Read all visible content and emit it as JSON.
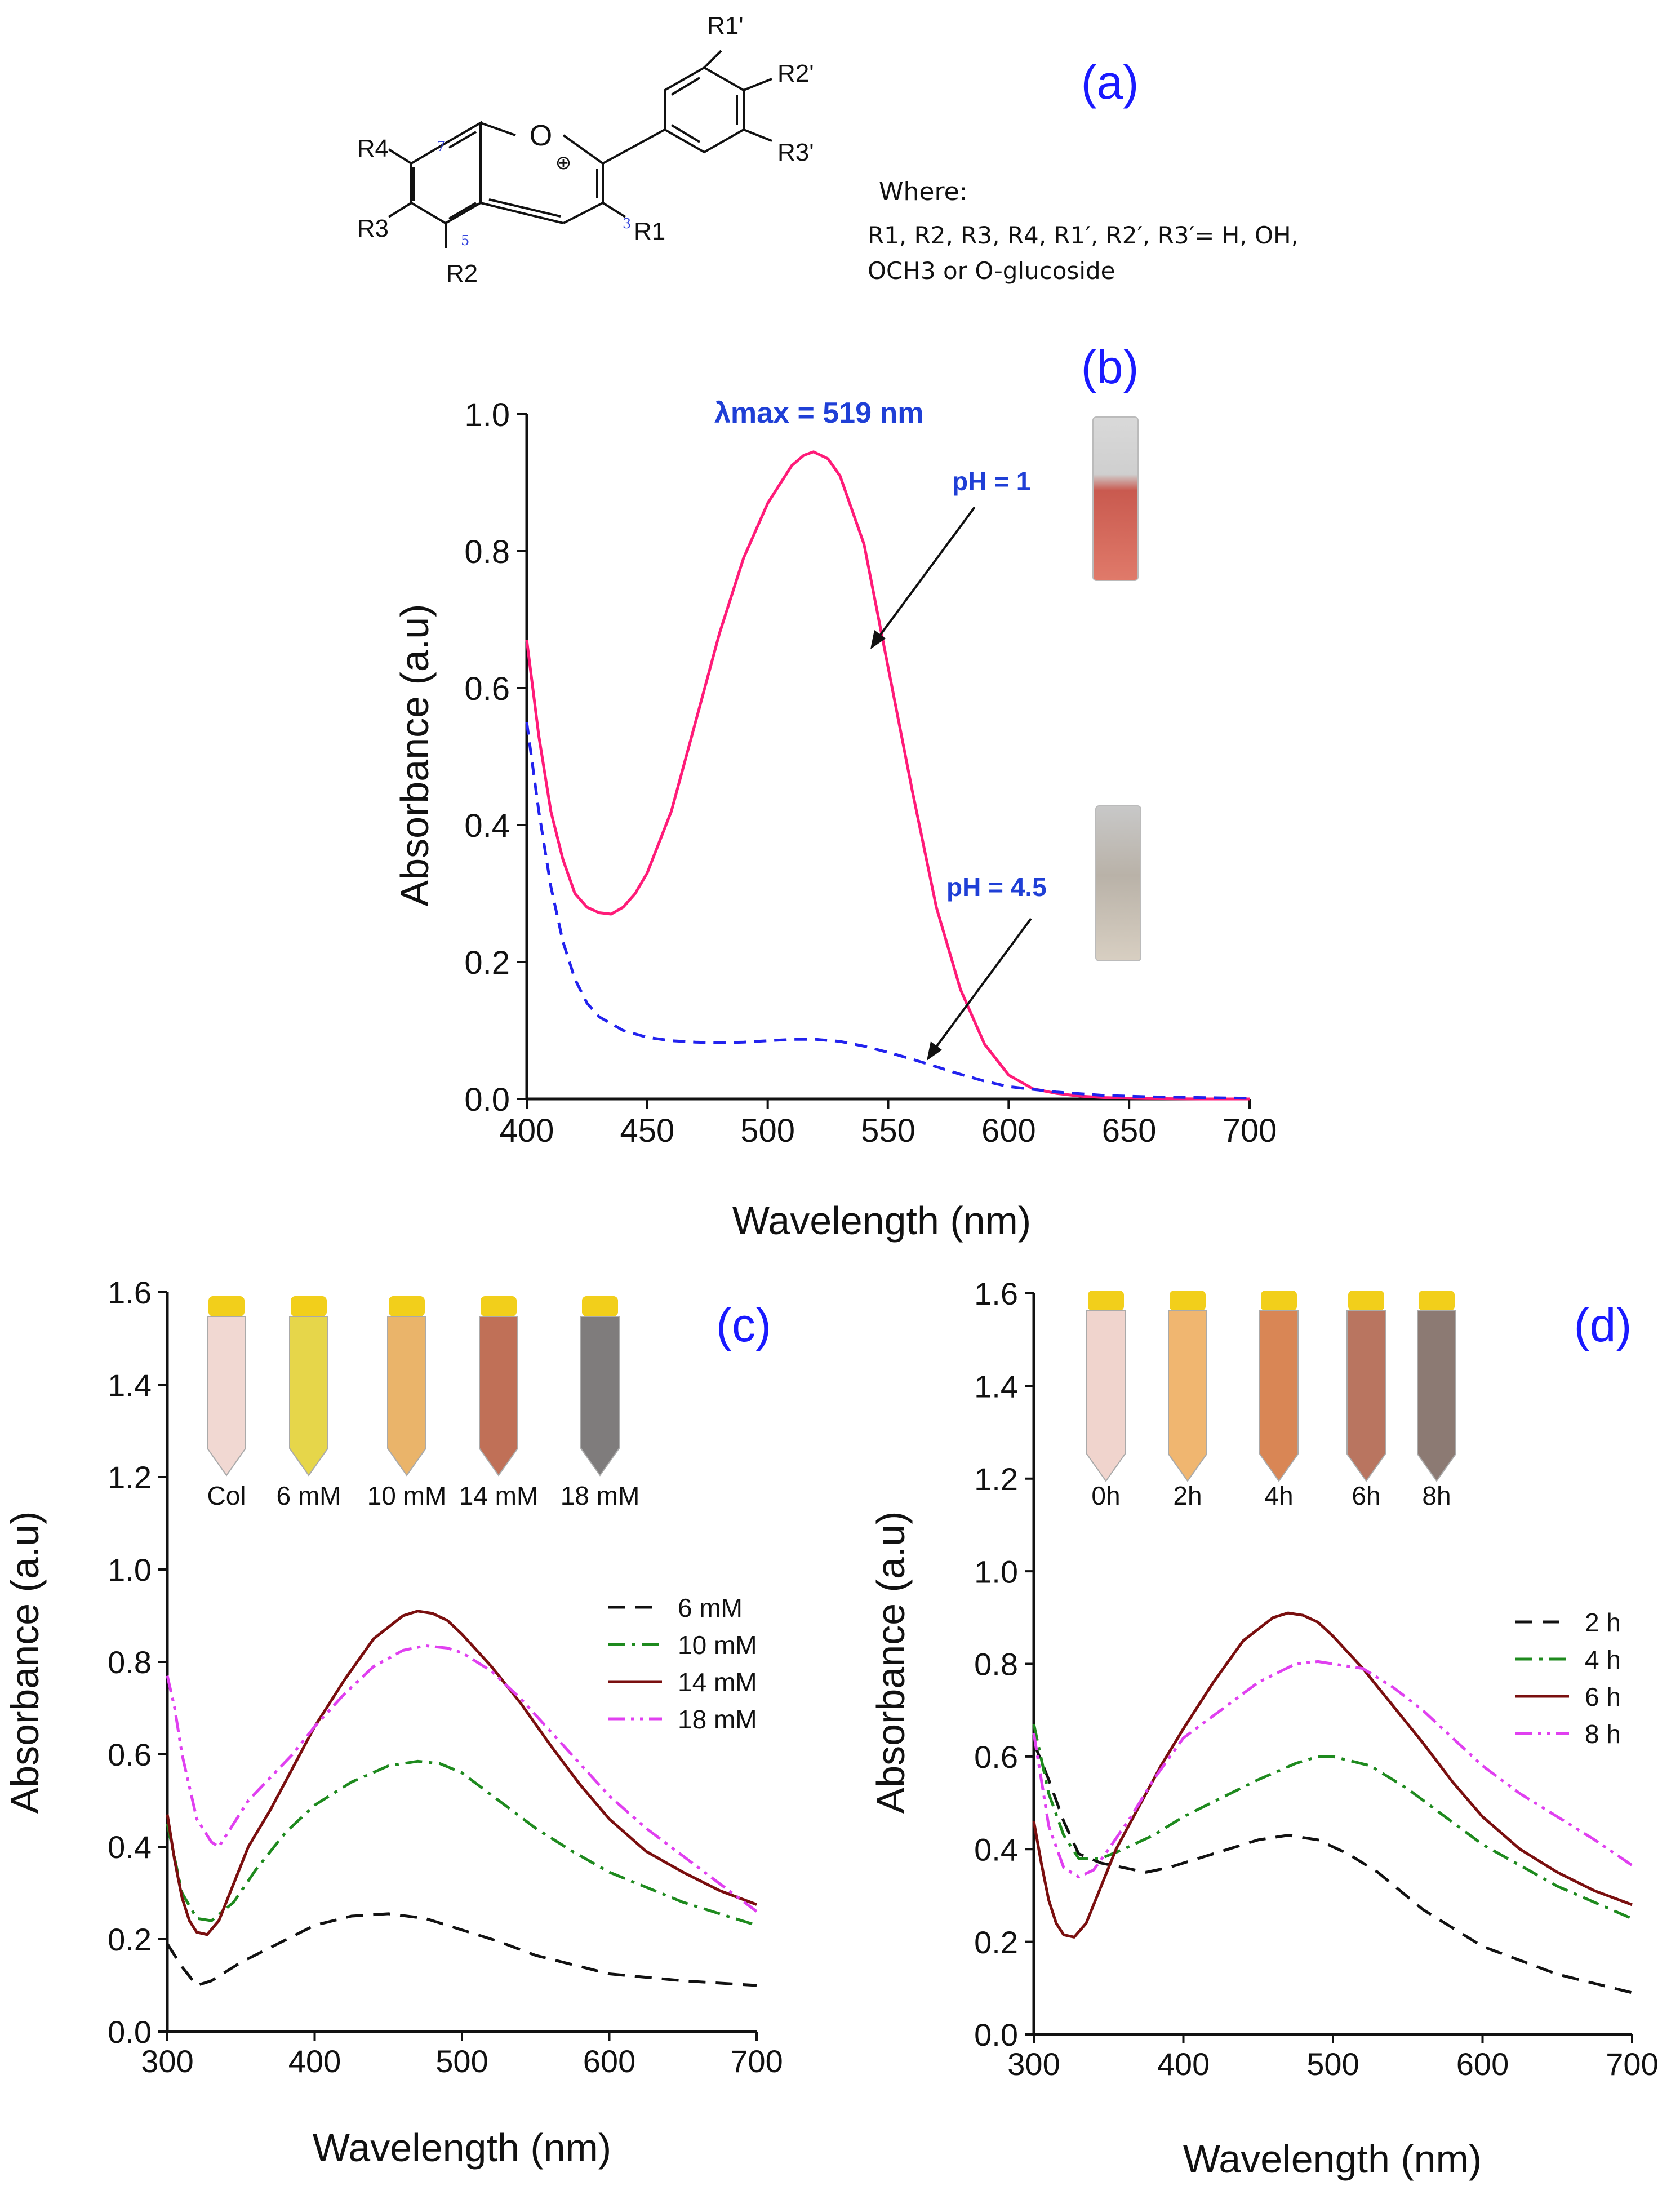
{
  "colors": {
    "blue_label": "#1a1aff",
    "blue_text": "#1f3fd6",
    "pink": "#ff1b78",
    "dash_blue": "#2222ee",
    "black": "#111111",
    "green": "#1e8a1e",
    "maroon": "#7a0f0f",
    "magenta": "#e040f0"
  },
  "structure": {
    "label": "(a)",
    "subs": {
      "r1p": "R1'",
      "r2p": "R2'",
      "r3p": "R3'",
      "r4": "R4",
      "r3": "R3",
      "r2": "R2",
      "r1": "R1",
      "o": "O",
      "plus": "⊕",
      "n7": "7",
      "n5": "5",
      "n3": "3"
    },
    "where": "Where:",
    "where_line1": "R1, R2, R3, R4, R1′, R2′, R3′= H, OH,",
    "where_line2": "OCH3 or O-glucoside"
  },
  "chart_data": [
    {
      "panel": "(b)",
      "type": "line",
      "xlabel": "Wavelength (nm)",
      "ylabel": "Absorbance (a.u)",
      "xlim": [
        400,
        700
      ],
      "ylim": [
        0.0,
        1.0
      ],
      "xticks": [
        "400",
        "450",
        "500",
        "550",
        "600",
        "650",
        "700"
      ],
      "yticks": [
        "0.0",
        "0.2",
        "0.4",
        "0.6",
        "0.8",
        "1.0"
      ],
      "annotation_lmax": "λmax = 519 nm",
      "annotation_ph1": "pH = 1",
      "annotation_ph45": "pH = 4.5",
      "series": [
        {
          "name": "pH = 1",
          "style": "solid",
          "x": [
            400,
            405,
            410,
            415,
            420,
            425,
            430,
            435,
            440,
            445,
            450,
            460,
            470,
            480,
            490,
            500,
            510,
            515,
            519,
            525,
            530,
            540,
            550,
            560,
            570,
            580,
            590,
            600,
            610,
            620,
            630,
            640,
            650,
            660,
            680,
            700
          ],
          "y": [
            0.67,
            0.53,
            0.42,
            0.35,
            0.3,
            0.28,
            0.272,
            0.27,
            0.28,
            0.3,
            0.33,
            0.42,
            0.55,
            0.68,
            0.79,
            0.87,
            0.925,
            0.94,
            0.945,
            0.935,
            0.91,
            0.81,
            0.63,
            0.45,
            0.28,
            0.16,
            0.08,
            0.035,
            0.015,
            0.008,
            0.004,
            0.002,
            0.001,
            0.0005,
            0.0,
            0.0
          ]
        },
        {
          "name": "pH = 4.5",
          "style": "dashed",
          "x": [
            400,
            405,
            410,
            415,
            420,
            425,
            430,
            440,
            450,
            460,
            470,
            480,
            490,
            500,
            510,
            520,
            530,
            540,
            550,
            560,
            570,
            580,
            590,
            600,
            620,
            640,
            660,
            680,
            700
          ],
          "y": [
            0.55,
            0.42,
            0.31,
            0.23,
            0.175,
            0.14,
            0.12,
            0.1,
            0.09,
            0.085,
            0.083,
            0.082,
            0.083,
            0.085,
            0.087,
            0.087,
            0.084,
            0.077,
            0.068,
            0.058,
            0.047,
            0.036,
            0.026,
            0.018,
            0.01,
            0.005,
            0.003,
            0.002,
            0.001
          ]
        }
      ]
    },
    {
      "panel": "(c)",
      "type": "line",
      "xlabel": "Wavelength (nm)",
      "ylabel": "Absorbance (a.u)",
      "xlim": [
        300,
        700
      ],
      "ylim": [
        0.0,
        1.6
      ],
      "xticks": [
        "300",
        "400",
        "500",
        "600",
        "700"
      ],
      "yticks": [
        "0.0",
        "0.2",
        "0.4",
        "0.6",
        "0.8",
        "1.0",
        "1.2",
        "1.4",
        "1.6"
      ],
      "tube_labels": [
        "Col",
        "6 mM",
        "10 mM",
        "14 mM",
        "18 mM"
      ],
      "series": [
        {
          "name": "6 mM",
          "style": "dash",
          "x": [
            300,
            310,
            320,
            330,
            350,
            375,
            400,
            425,
            450,
            475,
            500,
            525,
            550,
            600,
            650,
            700
          ],
          "y": [
            0.19,
            0.14,
            0.1,
            0.11,
            0.15,
            0.19,
            0.23,
            0.25,
            0.255,
            0.245,
            0.22,
            0.195,
            0.165,
            0.125,
            0.11,
            0.1
          ]
        },
        {
          "name": "10 mM",
          "style": "dashdot",
          "x": [
            300,
            310,
            320,
            330,
            345,
            360,
            380,
            400,
            425,
            450,
            470,
            485,
            500,
            525,
            550,
            575,
            600,
            650,
            700
          ],
          "y": [
            0.45,
            0.3,
            0.245,
            0.24,
            0.28,
            0.35,
            0.43,
            0.49,
            0.54,
            0.575,
            0.585,
            0.58,
            0.56,
            0.5,
            0.44,
            0.39,
            0.345,
            0.28,
            0.23
          ]
        },
        {
          "name": "14 mM",
          "style": "solid",
          "x": [
            300,
            305,
            310,
            315,
            320,
            327,
            335,
            345,
            355,
            370,
            385,
            400,
            420,
            440,
            460,
            470,
            480,
            490,
            500,
            520,
            540,
            560,
            580,
            600,
            625,
            650,
            675,
            700
          ],
          "y": [
            0.47,
            0.37,
            0.29,
            0.24,
            0.215,
            0.21,
            0.24,
            0.32,
            0.4,
            0.48,
            0.57,
            0.66,
            0.76,
            0.85,
            0.9,
            0.91,
            0.905,
            0.89,
            0.86,
            0.79,
            0.71,
            0.62,
            0.535,
            0.46,
            0.39,
            0.345,
            0.305,
            0.275
          ]
        },
        {
          "name": "18 mM",
          "style": "dashdotdot",
          "x": [
            300,
            305,
            310,
            320,
            330,
            335,
            345,
            355,
            370,
            385,
            400,
            420,
            440,
            460,
            475,
            490,
            500,
            520,
            540,
            560,
            580,
            600,
            625,
            650,
            675,
            700
          ],
          "y": [
            0.77,
            0.7,
            0.6,
            0.46,
            0.41,
            0.4,
            0.45,
            0.5,
            0.55,
            0.6,
            0.66,
            0.73,
            0.79,
            0.825,
            0.835,
            0.83,
            0.82,
            0.78,
            0.72,
            0.65,
            0.58,
            0.51,
            0.44,
            0.38,
            0.32,
            0.26
          ]
        }
      ]
    },
    {
      "panel": "(d)",
      "type": "line",
      "xlabel": "Wavelength (nm)",
      "ylabel": "Absorbance (a.u)",
      "xlim": [
        300,
        700
      ],
      "ylim": [
        0.0,
        1.6
      ],
      "xticks": [
        "300",
        "400",
        "500",
        "600",
        "700"
      ],
      "yticks": [
        "0.0",
        "0.2",
        "0.4",
        "0.6",
        "0.8",
        "1.0",
        "1.2",
        "1.4",
        "1.6"
      ],
      "tube_labels": [
        "0h",
        "2h",
        "4h",
        "6h",
        "8h"
      ],
      "series": [
        {
          "name": "2 h",
          "style": "dash",
          "x": [
            300,
            310,
            320,
            330,
            345,
            360,
            375,
            390,
            410,
            430,
            450,
            470,
            490,
            510,
            530,
            560,
            600,
            650,
            700
          ],
          "y": [
            0.63,
            0.55,
            0.46,
            0.39,
            0.37,
            0.36,
            0.35,
            0.36,
            0.38,
            0.4,
            0.42,
            0.43,
            0.42,
            0.39,
            0.35,
            0.27,
            0.19,
            0.13,
            0.09
          ]
        },
        {
          "name": "4 h",
          "style": "dashdot",
          "x": [
            300,
            310,
            320,
            330,
            345,
            360,
            380,
            400,
            425,
            450,
            475,
            490,
            500,
            525,
            550,
            575,
            600,
            650,
            700
          ],
          "y": [
            0.67,
            0.52,
            0.43,
            0.38,
            0.38,
            0.4,
            0.43,
            0.47,
            0.51,
            0.55,
            0.585,
            0.6,
            0.6,
            0.58,
            0.53,
            0.47,
            0.41,
            0.32,
            0.25
          ]
        },
        {
          "name": "6 h",
          "style": "solid",
          "x": [
            300,
            305,
            310,
            315,
            320,
            327,
            335,
            345,
            355,
            370,
            385,
            400,
            420,
            440,
            460,
            470,
            480,
            490,
            500,
            520,
            540,
            560,
            580,
            600,
            625,
            650,
            675,
            700
          ],
          "y": [
            0.46,
            0.37,
            0.29,
            0.24,
            0.215,
            0.21,
            0.24,
            0.32,
            0.4,
            0.49,
            0.58,
            0.66,
            0.76,
            0.85,
            0.9,
            0.91,
            0.905,
            0.89,
            0.86,
            0.79,
            0.71,
            0.63,
            0.545,
            0.47,
            0.4,
            0.35,
            0.31,
            0.28
          ]
        },
        {
          "name": "8 h",
          "style": "dashdotdot",
          "x": [
            300,
            305,
            310,
            320,
            330,
            340,
            350,
            365,
            380,
            400,
            425,
            450,
            475,
            490,
            500,
            520,
            540,
            560,
            580,
            600,
            625,
            650,
            675,
            700
          ],
          "y": [
            0.65,
            0.55,
            0.45,
            0.36,
            0.34,
            0.355,
            0.4,
            0.47,
            0.55,
            0.64,
            0.7,
            0.76,
            0.8,
            0.805,
            0.8,
            0.79,
            0.75,
            0.7,
            0.64,
            0.58,
            0.52,
            0.47,
            0.42,
            0.365
          ]
        }
      ]
    }
  ]
}
